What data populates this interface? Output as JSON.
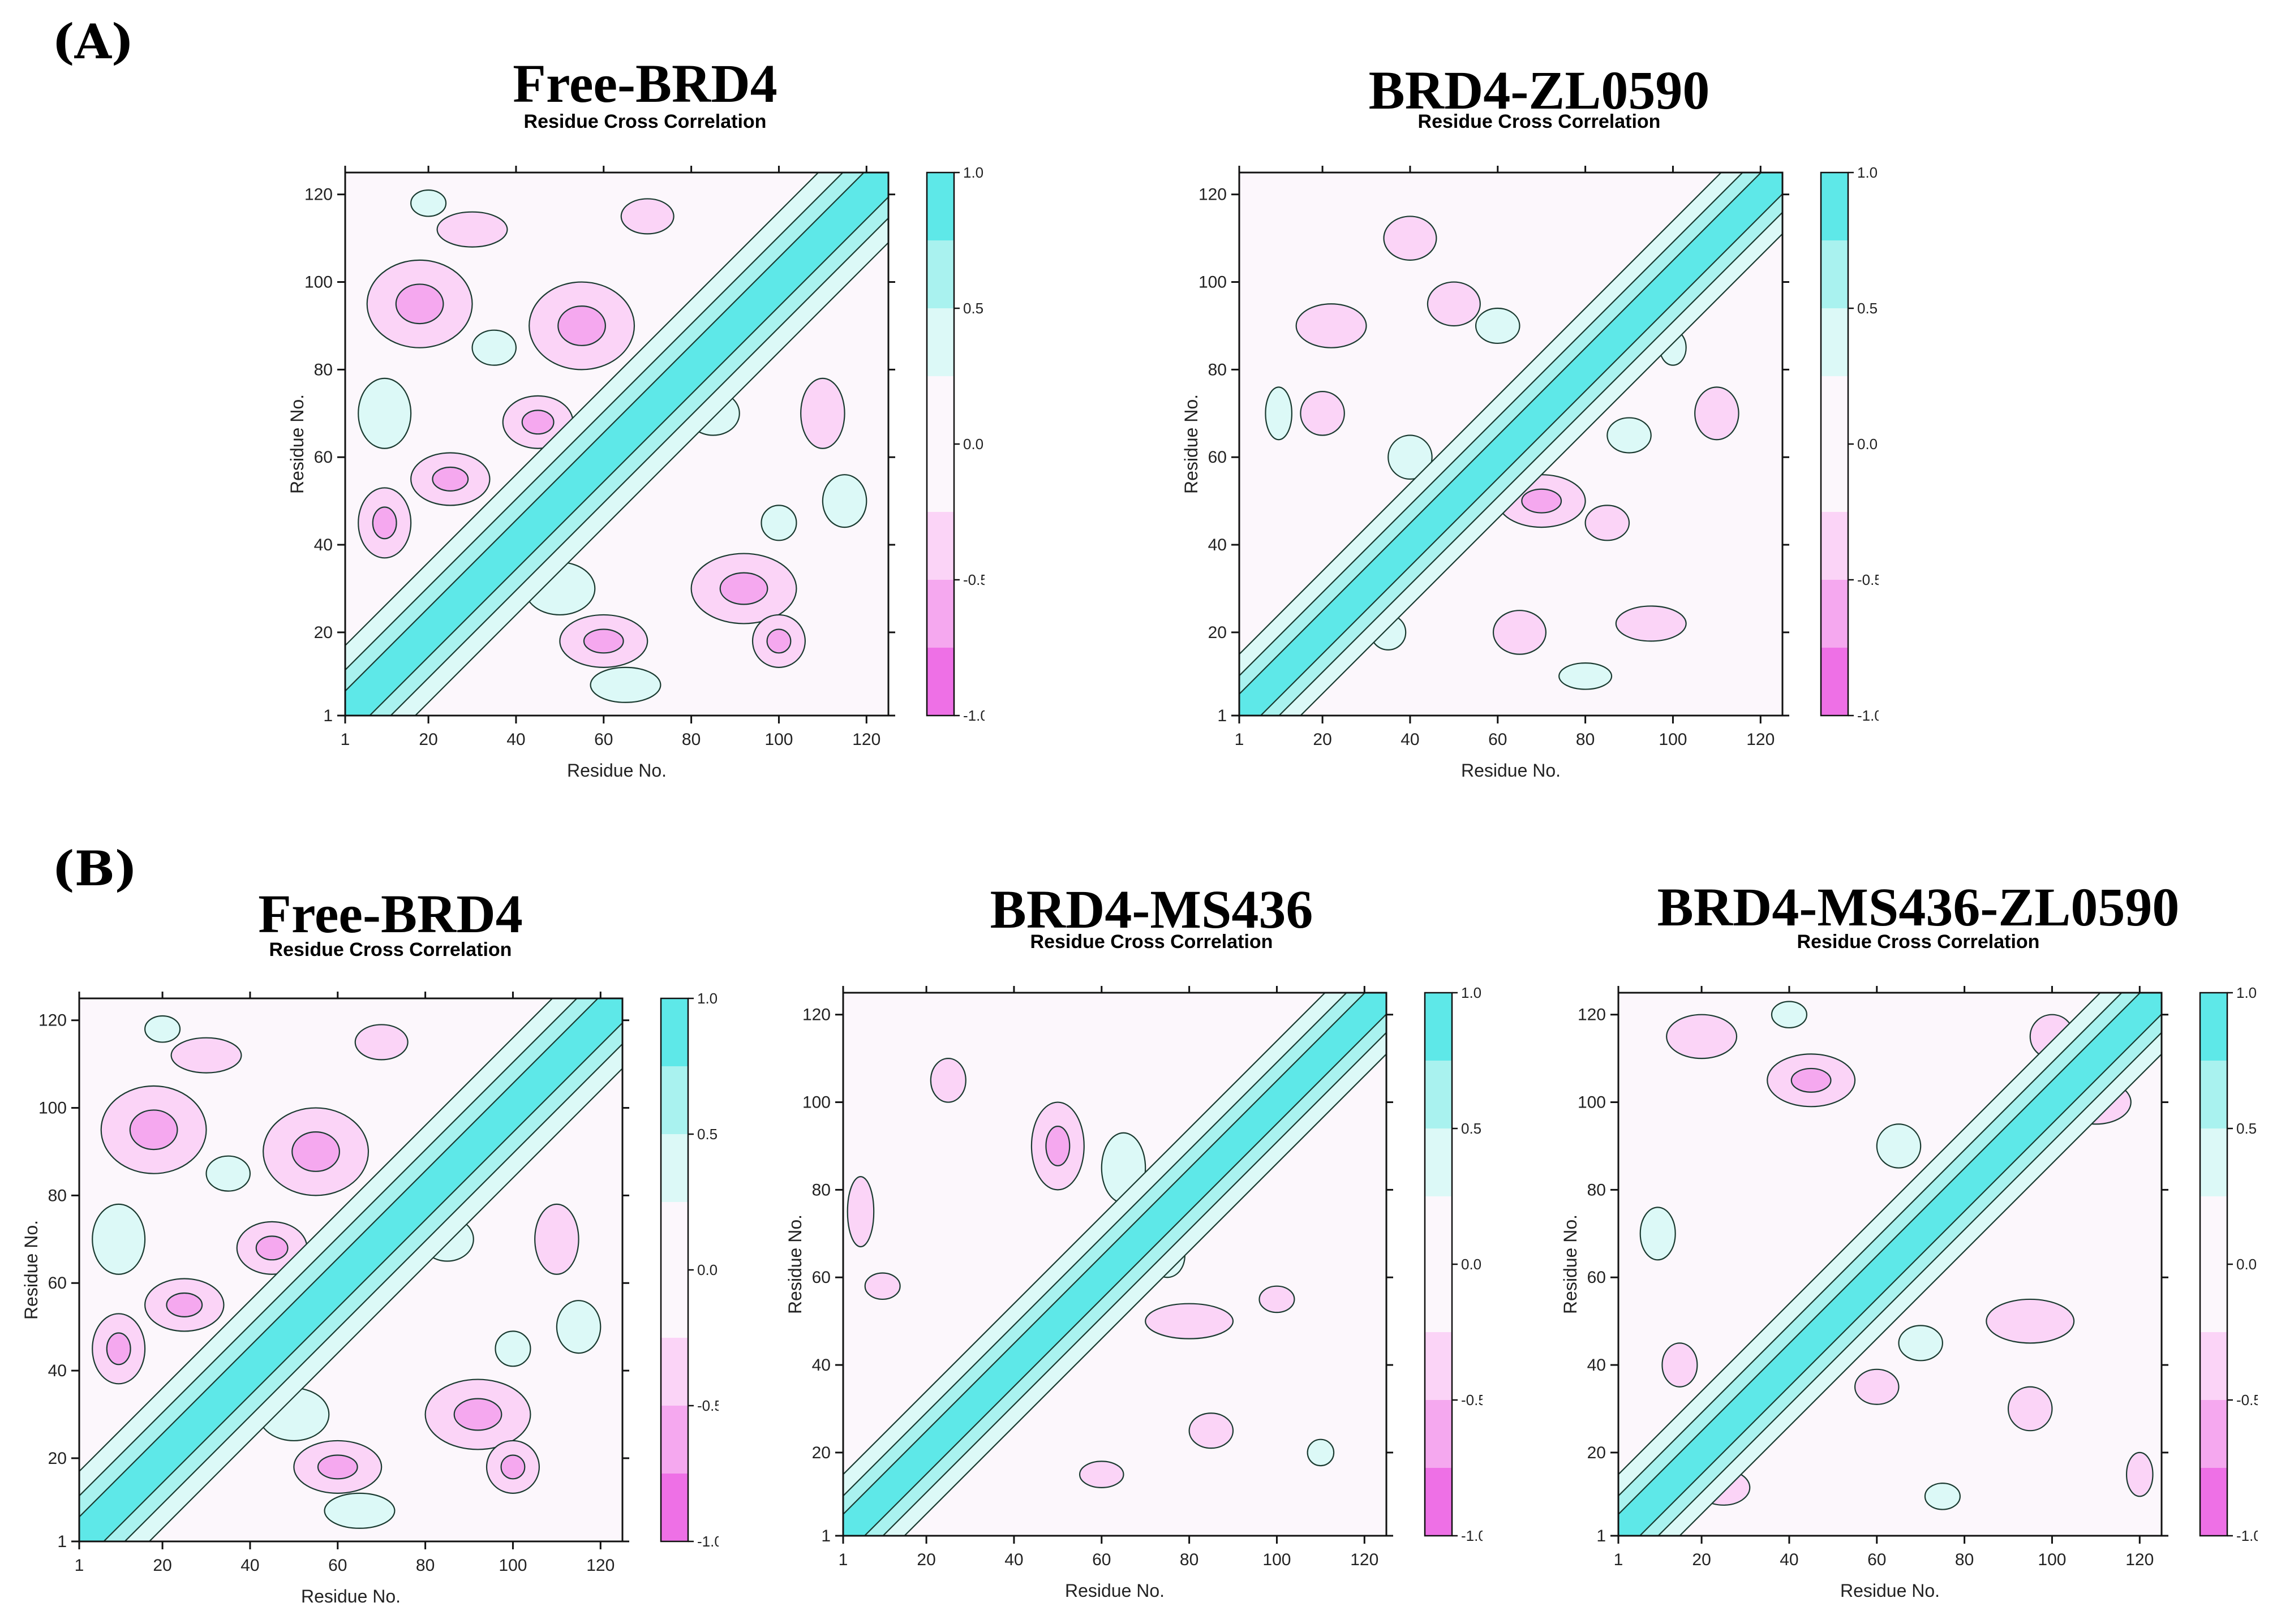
{
  "panels": [
    {
      "label": "(A)"
    },
    {
      "label": "(B)"
    }
  ],
  "colors": {
    "positive_strong": "#5ee8e8",
    "positive_mid": "#a9f2ef",
    "positive_weak": "#dcf9f7",
    "neutral": "#fcf7fc",
    "negative_weak": "#fbd4f7",
    "negative_mid": "#f5a8ef",
    "negative_strong": "#ee70e6",
    "contour": "#1a3a30"
  },
  "chart_data": [
    {
      "type": "heatmap",
      "panel": "(A)",
      "title": "Free-BRD4",
      "subtitle": "Residue Cross Correlation",
      "xlabel": "Residue No.",
      "ylabel": "Residue No.",
      "xlim": [
        1,
        125
      ],
      "ylim": [
        1,
        125
      ],
      "x_ticks": [
        1,
        20,
        40,
        60,
        80,
        100,
        120
      ],
      "y_ticks": [
        1,
        20,
        40,
        60,
        80,
        100,
        120
      ],
      "colorbar": {
        "range": [
          -1.0,
          1.0
        ],
        "ticks": [
          "1.0",
          "0.5",
          "0.0",
          "-0.5",
          "-1.0"
        ]
      },
      "diagonal_width": 8,
      "negative_regions": [
        [
          18,
          95,
          12,
          10
        ],
        [
          55,
          90,
          12,
          10
        ],
        [
          95,
          95,
          10,
          8
        ],
        [
          92,
          30,
          12,
          8
        ],
        [
          25,
          55,
          9,
          6
        ],
        [
          60,
          18,
          10,
          6
        ],
        [
          45,
          68,
          8,
          6
        ],
        [
          10,
          45,
          6,
          8
        ],
        [
          100,
          18,
          6,
          6
        ],
        [
          30,
          112,
          8,
          4
        ],
        [
          70,
          115,
          6,
          4
        ],
        [
          110,
          70,
          5,
          8
        ]
      ],
      "positive_regions": [
        [
          10,
          70,
          6,
          8
        ],
        [
          50,
          30,
          8,
          6
        ],
        [
          35,
          85,
          5,
          4
        ],
        [
          85,
          70,
          6,
          5
        ],
        [
          65,
          8,
          8,
          4
        ],
        [
          115,
          50,
          5,
          6
        ],
        [
          20,
          118,
          4,
          3
        ],
        [
          100,
          45,
          4,
          4
        ]
      ]
    },
    {
      "type": "heatmap",
      "panel": "(A)",
      "title": "BRD4-ZL0590",
      "subtitle": "Residue Cross Correlation",
      "xlabel": "Residue No.",
      "ylabel": "Residue No.",
      "xlim": [
        1,
        125
      ],
      "ylim": [
        1,
        125
      ],
      "x_ticks": [
        1,
        20,
        40,
        60,
        80,
        100,
        120
      ],
      "y_ticks": [
        1,
        20,
        40,
        60,
        80,
        100,
        120
      ],
      "colorbar": {
        "range": [
          -1.0,
          1.0
        ],
        "ticks": [
          "1.0",
          "0.5",
          "0.0",
          "-0.5",
          "-1.0"
        ]
      },
      "diagonal_width": 7,
      "negative_regions": [
        [
          22,
          90,
          8,
          5
        ],
        [
          50,
          95,
          6,
          5
        ],
        [
          70,
          50,
          10,
          6
        ],
        [
          40,
          110,
          6,
          5
        ],
        [
          110,
          70,
          5,
          6
        ],
        [
          65,
          20,
          6,
          5
        ],
        [
          20,
          70,
          5,
          5
        ],
        [
          95,
          22,
          8,
          4
        ],
        [
          45,
          40,
          4,
          5
        ],
        [
          85,
          45,
          5,
          4
        ]
      ],
      "positive_regions": [
        [
          40,
          60,
          5,
          5
        ],
        [
          60,
          90,
          5,
          4
        ],
        [
          90,
          65,
          5,
          4
        ],
        [
          10,
          70,
          3,
          6
        ],
        [
          80,
          10,
          6,
          3
        ],
        [
          35,
          20,
          4,
          4
        ],
        [
          100,
          85,
          3,
          4
        ]
      ]
    },
    {
      "type": "heatmap",
      "panel": "(B)",
      "title": "Free-BRD4",
      "subtitle": "Residue Cross Correlation",
      "xlabel": "Residue No.",
      "ylabel": "Residue No.",
      "xlim": [
        1,
        125
      ],
      "ylim": [
        1,
        125
      ],
      "x_ticks": [
        1,
        20,
        40,
        60,
        80,
        100,
        120
      ],
      "y_ticks": [
        1,
        20,
        40,
        60,
        80,
        100,
        120
      ],
      "colorbar": {
        "range": [
          -1.0,
          1.0
        ],
        "ticks": [
          "1.0",
          "0.5",
          "0.0",
          "-0.5",
          "-1.0"
        ]
      },
      "diagonal_width": 8,
      "negative_regions": [
        [
          18,
          95,
          12,
          10
        ],
        [
          55,
          90,
          12,
          10
        ],
        [
          95,
          95,
          10,
          8
        ],
        [
          92,
          30,
          12,
          8
        ],
        [
          25,
          55,
          9,
          6
        ],
        [
          60,
          18,
          10,
          6
        ],
        [
          45,
          68,
          8,
          6
        ],
        [
          10,
          45,
          6,
          8
        ],
        [
          100,
          18,
          6,
          6
        ],
        [
          30,
          112,
          8,
          4
        ],
        [
          70,
          115,
          6,
          4
        ],
        [
          110,
          70,
          5,
          8
        ]
      ],
      "positive_regions": [
        [
          10,
          70,
          6,
          8
        ],
        [
          50,
          30,
          8,
          6
        ],
        [
          35,
          85,
          5,
          4
        ],
        [
          85,
          70,
          6,
          5
        ],
        [
          65,
          8,
          8,
          4
        ],
        [
          115,
          50,
          5,
          6
        ],
        [
          20,
          118,
          4,
          3
        ],
        [
          100,
          45,
          4,
          4
        ]
      ]
    },
    {
      "type": "heatmap",
      "panel": "(B)",
      "title": "BRD4-MS436",
      "subtitle": "Residue Cross Correlation",
      "xlabel": "Residue No.",
      "ylabel": "Residue No.",
      "xlim": [
        1,
        125
      ],
      "ylim": [
        1,
        125
      ],
      "x_ticks": [
        1,
        20,
        40,
        60,
        80,
        100,
        120
      ],
      "y_ticks": [
        1,
        20,
        40,
        60,
        80,
        100,
        120
      ],
      "colorbar": {
        "range": [
          -1.0,
          1.0
        ],
        "ticks": [
          "1.0",
          "0.5",
          "0.0",
          "-0.5",
          "-1.0"
        ]
      },
      "diagonal_width": 7,
      "negative_regions": [
        [
          50,
          90,
          6,
          10
        ],
        [
          25,
          105,
          4,
          5
        ],
        [
          80,
          50,
          10,
          4
        ],
        [
          5,
          75,
          3,
          8
        ],
        [
          85,
          25,
          5,
          4
        ],
        [
          10,
          58,
          4,
          3
        ],
        [
          100,
          55,
          4,
          3
        ],
        [
          60,
          15,
          5,
          3
        ]
      ],
      "positive_regions": [
        [
          65,
          85,
          5,
          8
        ],
        [
          75,
          65,
          4,
          5
        ],
        [
          20,
          25,
          4,
          4
        ],
        [
          110,
          20,
          3,
          3
        ]
      ]
    },
    {
      "type": "heatmap",
      "panel": "(B)",
      "title": "BRD4-MS436-ZL0590",
      "subtitle": "Residue Cross Correlation",
      "xlabel": "Residue No.",
      "ylabel": "Residue No.",
      "xlim": [
        1,
        125
      ],
      "ylim": [
        1,
        125
      ],
      "x_ticks": [
        1,
        20,
        40,
        60,
        80,
        100,
        120
      ],
      "y_ticks": [
        1,
        20,
        40,
        60,
        80,
        100,
        120
      ],
      "colorbar": {
        "range": [
          -1.0,
          1.0
        ],
        "ticks": [
          "1.0",
          "0.5",
          "0.0",
          "-0.5",
          "-1.0"
        ]
      },
      "diagonal_width": 7,
      "negative_regions": [
        [
          20,
          115,
          8,
          5
        ],
        [
          45,
          105,
          10,
          6
        ],
        [
          95,
          50,
          10,
          5
        ],
        [
          110,
          100,
          8,
          5
        ],
        [
          100,
          115,
          5,
          5
        ],
        [
          60,
          35,
          5,
          4
        ],
        [
          15,
          40,
          4,
          5
        ],
        [
          95,
          30,
          5,
          5
        ],
        [
          120,
          15,
          3,
          5
        ],
        [
          25,
          12,
          6,
          4
        ]
      ],
      "positive_regions": [
        [
          10,
          70,
          4,
          6
        ],
        [
          65,
          90,
          5,
          5
        ],
        [
          70,
          45,
          5,
          4
        ],
        [
          40,
          120,
          4,
          3
        ],
        [
          90,
          85,
          3,
          4
        ],
        [
          75,
          10,
          4,
          3
        ]
      ]
    }
  ]
}
